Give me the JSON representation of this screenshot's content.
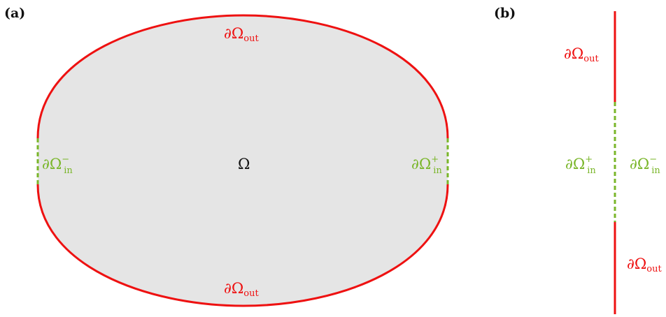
{
  "panels": {
    "a": {
      "tag": "(a)",
      "domain_label": "Ω",
      "out_top": {
        "main": "∂Ω",
        "sub": "out"
      },
      "out_bottom": {
        "main": "∂Ω",
        "sub": "out"
      },
      "in_left": {
        "main": "∂Ω",
        "sub": "in",
        "sup": "−"
      },
      "in_right": {
        "main": "∂Ω",
        "sub": "in",
        "sup": "+"
      }
    },
    "b": {
      "tag": "(b)",
      "out_top": {
        "main": "∂Ω",
        "sub": "out"
      },
      "out_bottom": {
        "main": "∂Ω",
        "sub": "out"
      },
      "in_left": {
        "main": "∂Ω",
        "sub": "in",
        "sup": "+"
      },
      "in_right": {
        "main": "∂Ω",
        "sub": "in",
        "sup": "−"
      }
    }
  },
  "colors": {
    "outflow": "#ee1111",
    "inflow": "#7ab62a",
    "fill": "#e5e5e5",
    "text": "#111111"
  }
}
